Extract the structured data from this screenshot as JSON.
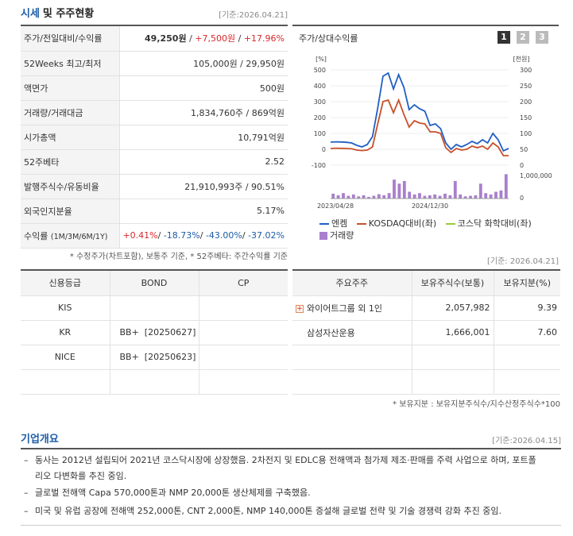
{
  "header": {
    "title_a": "시세",
    "title_b": "및 주주현황",
    "date": "[기준:2026.04.21]"
  },
  "summary": [
    {
      "label": "주가/전일대비/수익률",
      "price": "49,250원",
      "sep1": " / ",
      "change": "+7,500원",
      "sep2": " / ",
      "pct": "+17.96%"
    },
    {
      "label": "52Weeks 최고/최저",
      "value": "105,000원 / 29,950원"
    },
    {
      "label": "액면가",
      "value": "500원"
    },
    {
      "label": "거래량/거래대금",
      "value": "1,834,760주 / 869억원"
    },
    {
      "label": "시가총액",
      "value": "10,791억원"
    },
    {
      "label": "52주베타",
      "value": "2.52"
    },
    {
      "label": "발행주식수/유동비율",
      "value": "21,910,993주 / 90.51%"
    },
    {
      "label": "외국인지분율",
      "value": "5.17%"
    },
    {
      "label": "수익률",
      "label_sub": "(1M/3M/6M/1Y)",
      "r1": "+0.41%",
      "r2": "-18.73%",
      "r3": "-43.00%",
      "r4": "-37.02%",
      "sep": "/ "
    }
  ],
  "summary_note": "* 수정주가(차트포함), 보통주 기준, * 52주베타: 주간수익률 기준",
  "chart": {
    "title": "주가/상대수익률",
    "pages": [
      "1",
      "2",
      "3"
    ],
    "left_unit": "[%]",
    "right_unit": "[천원]",
    "left_ticks": [
      "500",
      "400",
      "300",
      "200",
      "100",
      "0",
      "-100"
    ],
    "right_ticks": [
      "300",
      "250",
      "200",
      "150",
      "100",
      "50",
      "0"
    ],
    "vol_ticks": [
      "1,000,000",
      "0"
    ],
    "x_labels": [
      "2023/04/28",
      "2024/12/30"
    ],
    "legend": [
      {
        "name": "엔켐",
        "color": "#1f5fc4"
      },
      {
        "name": "KOSDAQ대비(좌)",
        "color": "#c8512a"
      },
      {
        "name": "코스닥 화학대비(좌)",
        "color": "#9cc83a"
      },
      {
        "name": "거래량",
        "color": "#a97fcd"
      }
    ]
  },
  "chart_data": {
    "type": "line",
    "ylim": [
      -100,
      500
    ],
    "ylim_right": [
      0,
      300
    ],
    "series": [
      {
        "name": "엔켐",
        "values": [
          45,
          47,
          46,
          44,
          40,
          25,
          15,
          30,
          80,
          260,
          460,
          480,
          380,
          470,
          390,
          250,
          280,
          255,
          240,
          150,
          160,
          130,
          40,
          0,
          30,
          15,
          30,
          50,
          35,
          60,
          40,
          100,
          60,
          -10,
          5
        ]
      },
      {
        "name": "KOSDAQ대비(좌)",
        "values": [
          5,
          7,
          6,
          5,
          3,
          -5,
          -8,
          -5,
          15,
          160,
          300,
          310,
          230,
          310,
          220,
          140,
          180,
          165,
          160,
          110,
          110,
          100,
          10,
          -20,
          5,
          -5,
          0,
          20,
          10,
          20,
          0,
          40,
          15,
          -40,
          -40
        ]
      }
    ],
    "volume": [
      0.18,
      0.12,
      0.2,
      0.1,
      0.15,
      0.08,
      0.12,
      0.06,
      0.1,
      0.16,
      0.12,
      0.2,
      0.7,
      0.55,
      0.65,
      0.25,
      0.15,
      0.2,
      0.1,
      0.12,
      0.15,
      0.1,
      0.18,
      0.12,
      0.65,
      0.15,
      0.08,
      0.1,
      0.12,
      0.55,
      0.2,
      0.15,
      0.25,
      0.3,
      0.9
    ]
  },
  "chart_date": "[기준: 2026.04.21]",
  "credit": {
    "headers": [
      "신용등급",
      "BOND",
      "CP"
    ],
    "rows": [
      [
        "KIS",
        "",
        ""
      ],
      [
        "KR",
        "BB+  [20250627]",
        ""
      ],
      [
        "NICE",
        "BB+  [20250623]",
        ""
      ],
      [
        "",
        "",
        ""
      ]
    ]
  },
  "holders": {
    "headers": [
      "주요주주",
      "보유주식수(보통)",
      "보유지분(%)"
    ],
    "rows": [
      {
        "name": "와이어트그룹 외 1인",
        "shares": "2,057,982",
        "pct": "9.39"
      },
      {
        "name": "삼성자산운용",
        "shares": "1,666,001",
        "pct": "7.60"
      }
    ],
    "note": "* 보유지분 : 보유지분주식수/지수산정주식수*100"
  },
  "overview": {
    "title": "기업개요",
    "date": "[기준:2026.04.15]",
    "items": [
      "동사는 2012년 설립되어 2021년 코스닥시장에 상장했음. 2차전지 및 EDLC용 전해액과 첨가제 제조·판매를 주력 사업으로 하며, 포트폴리오 다변화를 추진 중임.",
      "글로벌 전해액 Capa 570,000톤과 NMP 20,000톤 생산체제를 구축했음.",
      "미국 및 유럽 공장에 전해액 252,000톤, CNT 2,000톤, NMP 140,000톤 증설해 글로벌 전략 및 기술 경쟁력 강화 추진 중임."
    ]
  }
}
